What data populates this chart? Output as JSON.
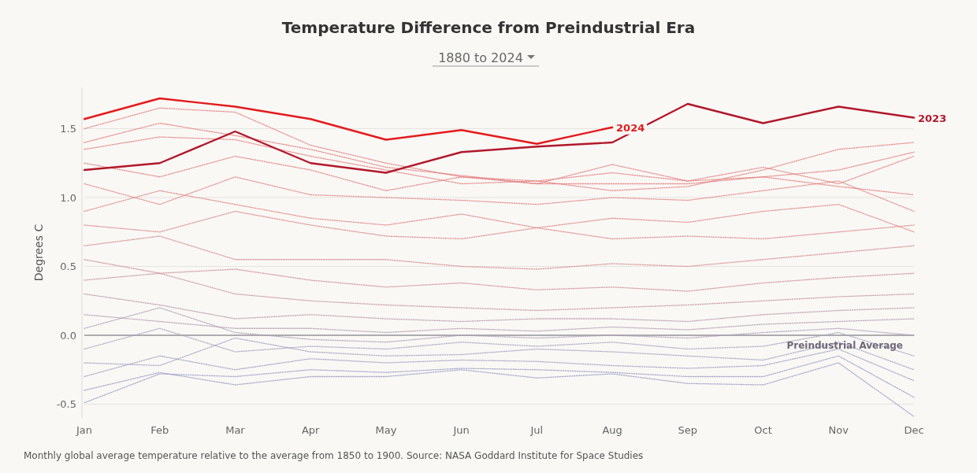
{
  "chart_data": {
    "type": "line",
    "title": "Temperature Difference from Preindustrial Era",
    "subtitle": "1880 to 2024",
    "ylabel": "Degrees C",
    "categories": [
      "Jan",
      "Feb",
      "Mar",
      "Apr",
      "May",
      "Jun",
      "Jul",
      "Aug",
      "Sep",
      "Oct",
      "Nov",
      "Dec"
    ],
    "ylim": [
      -0.6,
      1.8
    ],
    "yticks": [
      -0.5,
      {
        "value": 0,
        "label": "0.0"
      },
      0.5,
      {
        "value": 1,
        "label": "1.0"
      },
      1.5
    ],
    "grid": "y",
    "marker": "none",
    "ref_lines": [
      {
        "axis": "y",
        "value": 0,
        "label": "Preindustrial Average",
        "color": "#6e6878"
      }
    ],
    "annotations": [
      "Monthly global average temperature relative to the average from 1850 to 1900. Source: NASA Goddard Institute for Space Studies"
    ],
    "series": [
      {
        "color": "#9b9cc4",
        "line_style": "dotted",
        "values": [
          -0.49,
          -0.28,
          -0.3,
          -0.25,
          -0.27,
          -0.24,
          -0.25,
          -0.27,
          -0.3,
          -0.3,
          -0.15,
          -0.45
        ]
      },
      {
        "color": "#9c9cc3",
        "line_style": "dotted",
        "values": [
          -0.4,
          -0.27,
          -0.36,
          -0.3,
          -0.3,
          -0.25,
          -0.31,
          -0.28,
          -0.35,
          -0.36,
          -0.2,
          -0.59
        ]
      },
      {
        "color": "#a09fc2",
        "line_style": "dotted",
        "values": [
          -0.3,
          -0.15,
          -0.25,
          -0.17,
          -0.2,
          -0.18,
          -0.19,
          -0.22,
          -0.24,
          -0.22,
          -0.1,
          -0.33
        ]
      },
      {
        "color": "#a3a0c0",
        "line_style": "dotted",
        "values": [
          -0.2,
          -0.22,
          -0.02,
          -0.12,
          -0.15,
          -0.14,
          -0.1,
          -0.12,
          -0.15,
          -0.18,
          -0.05,
          -0.25
        ]
      },
      {
        "color": "#a8a2bd",
        "line_style": "dotted",
        "values": [
          -0.1,
          0.05,
          -0.12,
          -0.08,
          -0.1,
          -0.05,
          -0.08,
          -0.05,
          -0.1,
          -0.08,
          0.02,
          -0.15
        ]
      },
      {
        "color": "#ad9fb8",
        "line_style": "dotted",
        "values": [
          0.05,
          0.2,
          0.02,
          -0.03,
          -0.05,
          0.0,
          -0.02,
          0.0,
          -0.02,
          0.02,
          0.05,
          0.0
        ]
      },
      {
        "color": "#b39cb2",
        "line_style": "dotted",
        "values": [
          0.15,
          0.1,
          0.05,
          0.05,
          0.02,
          0.05,
          0.03,
          0.06,
          0.04,
          0.08,
          0.1,
          0.12
        ]
      },
      {
        "color": "#bc98aa",
        "line_style": "dotted",
        "values": [
          0.3,
          0.22,
          0.12,
          0.15,
          0.12,
          0.1,
          0.12,
          0.12,
          0.1,
          0.15,
          0.18,
          0.2
        ]
      },
      {
        "color": "#c794a1",
        "line_style": "dotted",
        "values": [
          0.4,
          0.45,
          0.3,
          0.25,
          0.22,
          0.2,
          0.18,
          0.2,
          0.22,
          0.25,
          0.28,
          0.3
        ]
      },
      {
        "color": "#d08d98",
        "line_style": "dotted",
        "values": [
          0.55,
          0.45,
          0.48,
          0.4,
          0.35,
          0.38,
          0.33,
          0.35,
          0.32,
          0.38,
          0.42,
          0.45
        ]
      },
      {
        "color": "#d6898f",
        "line_style": "dotted",
        "values": [
          0.65,
          0.72,
          0.55,
          0.55,
          0.55,
          0.5,
          0.48,
          0.52,
          0.5,
          0.55,
          0.6,
          0.65
        ]
      },
      {
        "color": "#dc8588",
        "line_style": "dotted",
        "values": [
          0.8,
          0.75,
          0.9,
          0.8,
          0.72,
          0.7,
          0.78,
          0.7,
          0.72,
          0.7,
          0.75,
          0.8
        ]
      },
      {
        "color": "#df8283",
        "line_style": "dotted",
        "values": [
          0.9,
          1.05,
          0.95,
          0.85,
          0.8,
          0.88,
          0.78,
          0.85,
          0.82,
          0.9,
          0.95,
          0.75
        ]
      },
      {
        "color": "#e17f80",
        "line_style": "dotted",
        "values": [
          1.1,
          0.95,
          1.15,
          1.02,
          1.0,
          0.98,
          0.95,
          1.0,
          0.98,
          1.05,
          1.12,
          0.9
        ]
      },
      {
        "color": "#e27c7e",
        "line_style": "dotted",
        "values": [
          1.25,
          1.15,
          1.3,
          1.2,
          1.05,
          1.15,
          1.12,
          1.18,
          1.12,
          1.22,
          1.1,
          1.3
        ]
      },
      {
        "color": "#e37a7c",
        "line_style": "dotted",
        "values": [
          1.35,
          1.44,
          1.42,
          1.3,
          1.2,
          1.1,
          1.12,
          1.05,
          1.08,
          1.2,
          1.35,
          1.4
        ]
      },
      {
        "color": "#e4797b",
        "line_style": "dotted",
        "values": [
          1.5,
          1.65,
          1.62,
          1.38,
          1.25,
          1.15,
          1.1,
          1.24,
          1.12,
          1.15,
          1.08,
          1.02
        ]
      },
      {
        "color": "#e4787a",
        "line_style": "dotted",
        "values": [
          1.4,
          1.54,
          1.45,
          1.35,
          1.22,
          1.16,
          1.1,
          1.1,
          1.1,
          1.15,
          1.2,
          1.33
        ]
      },
      {
        "name": "2023",
        "color": "#b2182b",
        "line_style": "solid",
        "values": [
          1.2,
          1.25,
          1.48,
          1.25,
          1.18,
          1.33,
          1.37,
          1.4,
          1.68,
          1.54,
          1.66,
          1.58
        ]
      },
      {
        "name": "2024",
        "color": "#e41a1c",
        "line_style": "solid",
        "values": [
          1.57,
          1.72,
          1.66,
          1.57,
          1.42,
          1.49,
          1.39,
          1.51,
          null,
          null,
          null,
          null
        ]
      }
    ]
  }
}
